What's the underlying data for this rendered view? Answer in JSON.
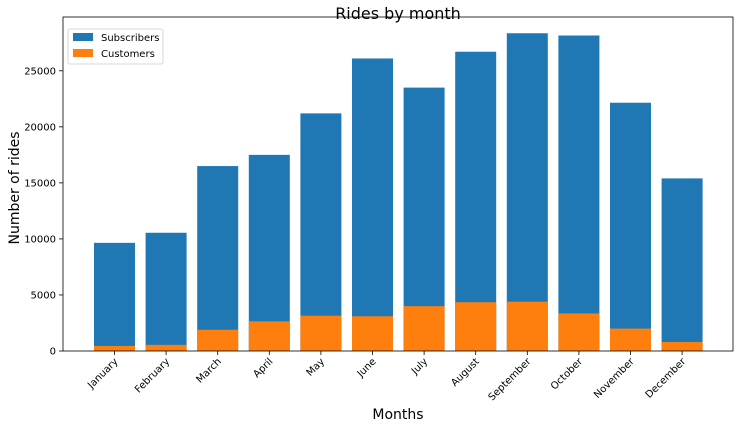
{
  "chart_data": {
    "type": "bar",
    "stacked": false,
    "title": "Rides by month",
    "xlabel": "Months",
    "ylabel": "Number of rides",
    "categories": [
      "January",
      "February",
      "March",
      "April",
      "May",
      "June",
      "July",
      "August",
      "September",
      "October",
      "November",
      "December"
    ],
    "series": [
      {
        "name": "Subscribers",
        "color": "#1f77b4",
        "values": [
          9650,
          10550,
          16500,
          17500,
          21200,
          26100,
          23500,
          26700,
          28350,
          28150,
          22150,
          15400
        ]
      },
      {
        "name": "Customers",
        "color": "#ff7f0e",
        "values": [
          450,
          550,
          1900,
          2650,
          3150,
          3100,
          4000,
          4350,
          4400,
          3350,
          2000,
          800
        ]
      }
    ],
    "ylim": [
      0,
      29800
    ],
    "yticks": [
      0,
      5000,
      10000,
      15000,
      20000,
      25000
    ],
    "grid": false,
    "legend": "top-left"
  }
}
